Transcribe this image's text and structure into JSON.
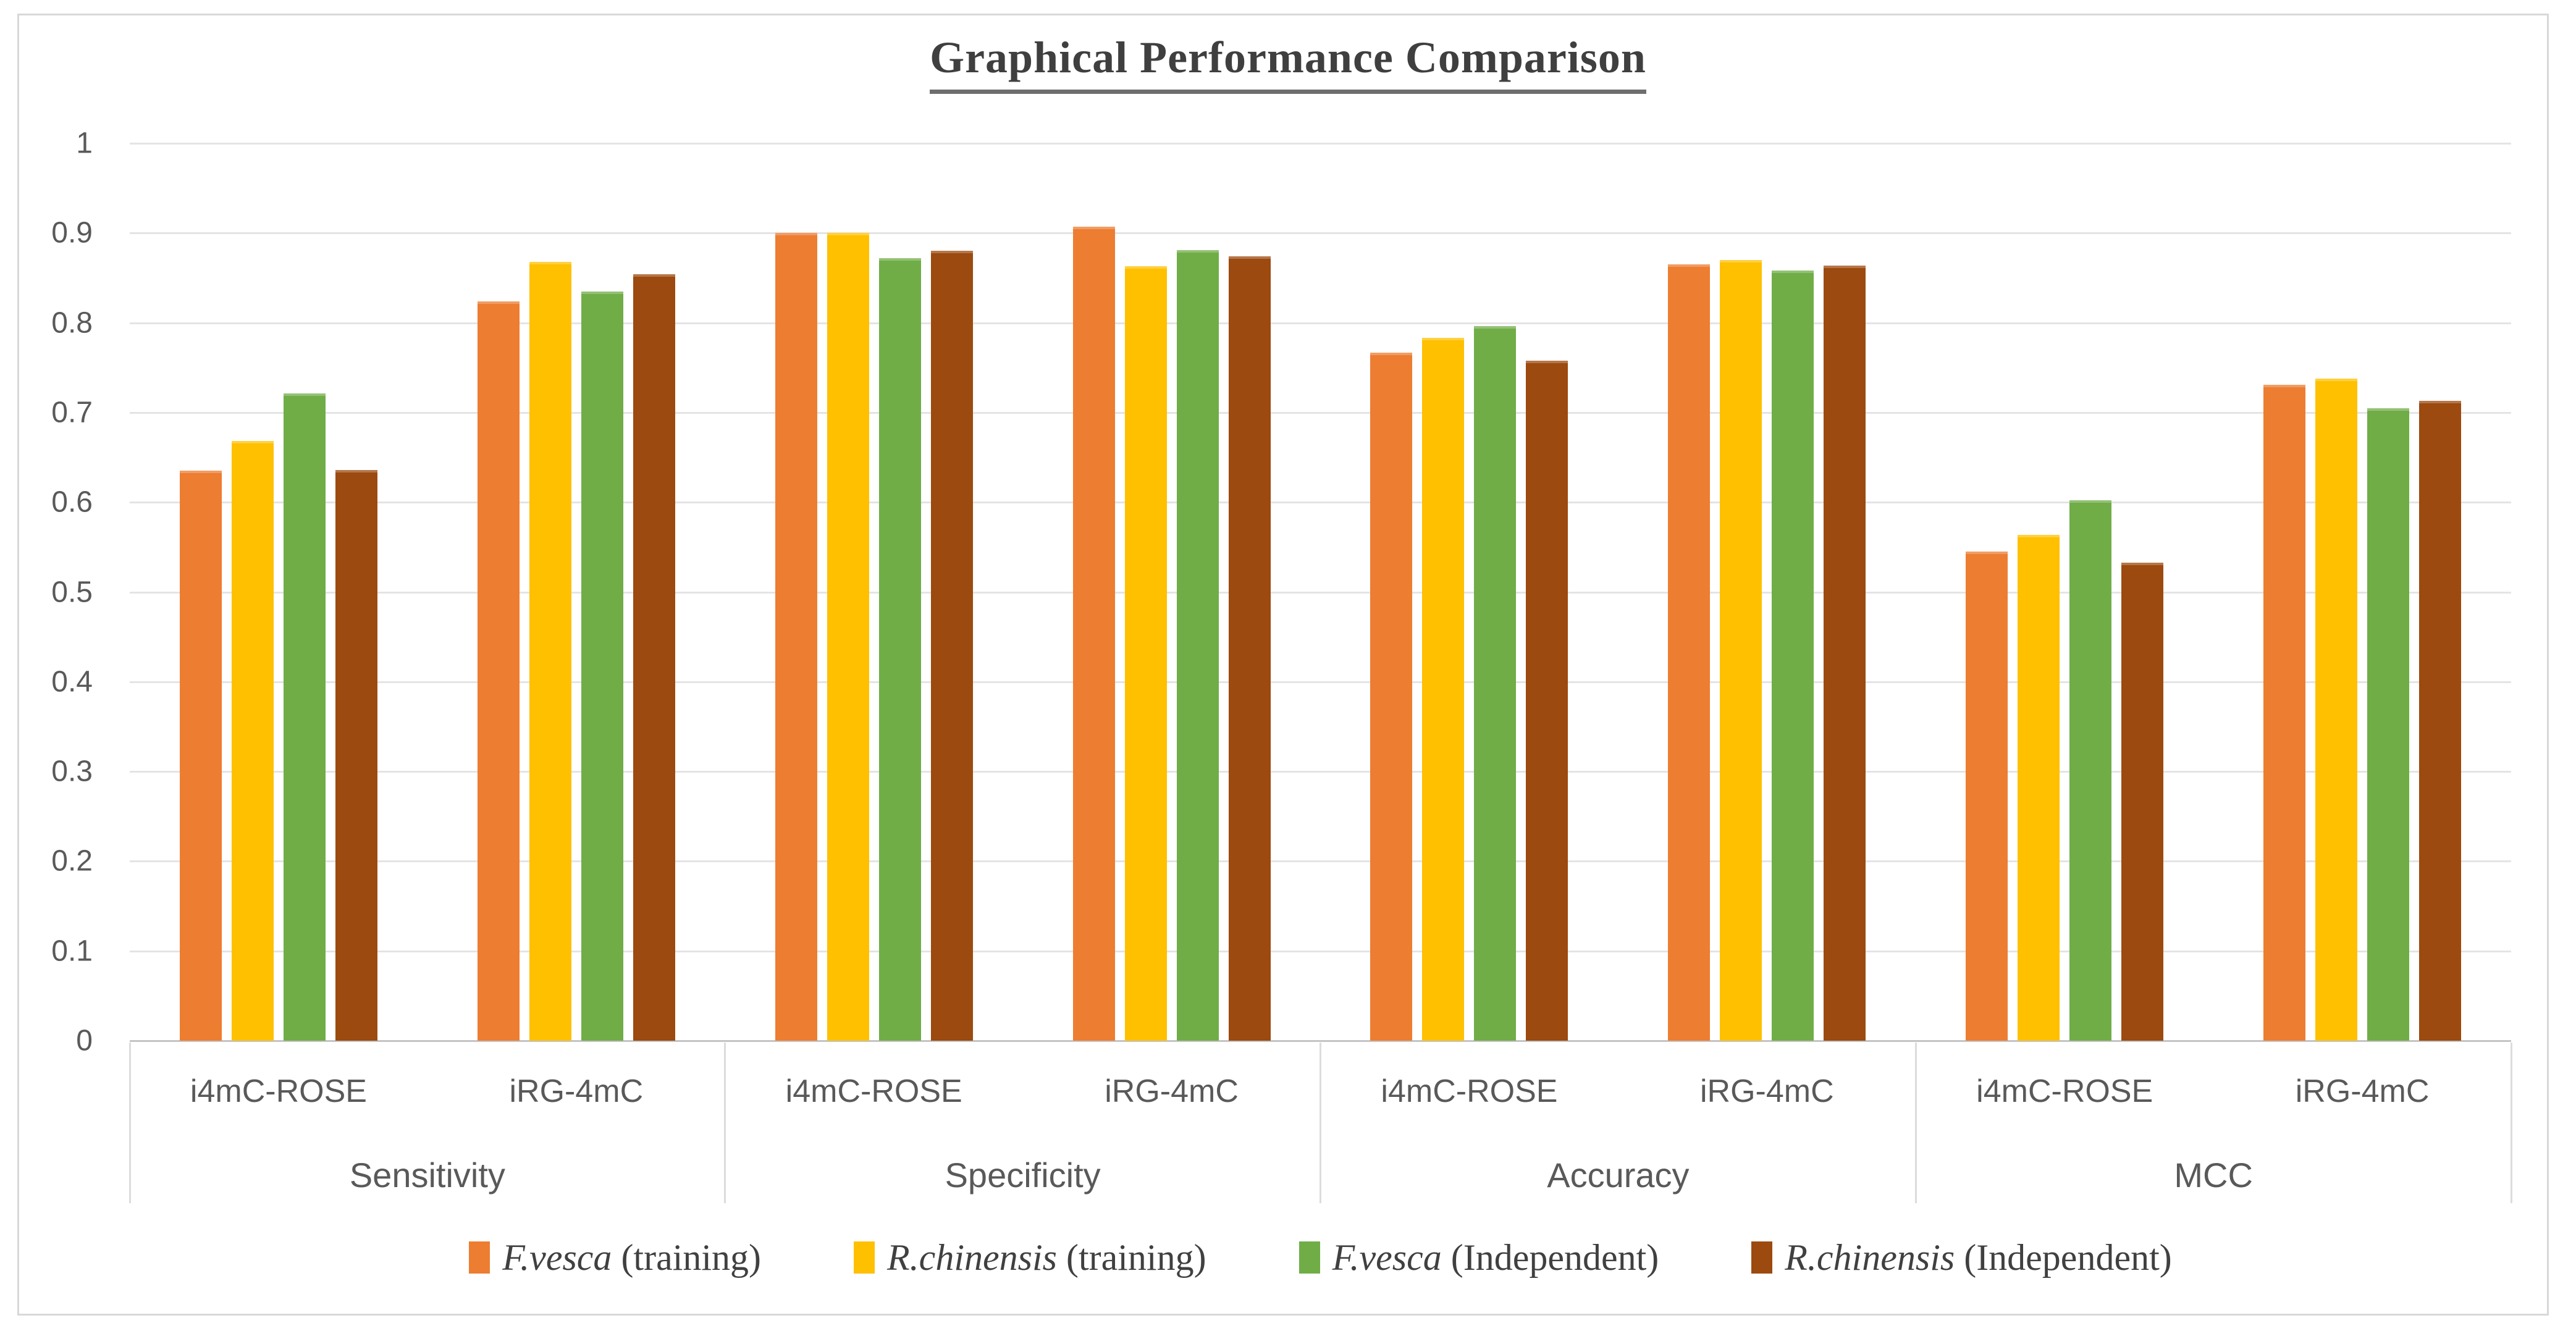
{
  "title": "Graphical Performance Comparison",
  "colors": {
    "background": "#ffffff",
    "figure_border": "#d8d8d8",
    "gridline": "#e4e4e4",
    "axis_line": "#c4c4c4",
    "tick_text": "#595959",
    "title_text": "#3f3f3f",
    "legend_text": "#404040",
    "group_separator": "#dcdcdc",
    "series_orange": "#ED7D31",
    "series_gold": "#FFC000",
    "series_green": "#70AD47",
    "series_brown": "#9C4A0F"
  },
  "chart_data": {
    "type": "bar",
    "title": "Graphical Performance Comparison",
    "xlabel": "",
    "ylabel": "",
    "ylim": [
      0,
      1
    ],
    "ytick_step": 0.1,
    "yticks": [
      "1",
      "0.9",
      "0.8",
      "0.7",
      "0.6",
      "0.5",
      "0.4",
      "0.3",
      "0.2",
      "0.1",
      "0"
    ],
    "grid": "horizontal",
    "legend_position": "bottom",
    "groups": [
      "Sensitivity",
      "Specificity",
      "Accuracy",
      "MCC"
    ],
    "subgroups": [
      "i4mC-ROSE",
      "iRG-4mC"
    ],
    "cluster_order": [
      "Sensitivity / i4mC-ROSE",
      "Sensitivity / iRG-4mC",
      "Specificity / i4mC-ROSE",
      "Specificity / iRG-4mC",
      "Accuracy / i4mC-ROSE",
      "Accuracy / iRG-4mC",
      "MCC / i4mC-ROSE",
      "MCC / iRG-4mC"
    ],
    "series": [
      {
        "name": "F.vesca (training)",
        "species": "F.vesca",
        "label_suffix": " (training)",
        "color": "#ED7D31",
        "values": [
          0.635,
          0.824,
          0.9,
          0.907,
          0.767,
          0.865,
          0.545,
          0.731
        ]
      },
      {
        "name": "R.chinensis (training)",
        "species": "R.chinensis",
        "label_suffix": " (training)",
        "color": "#FFC000",
        "values": [
          0.668,
          0.868,
          0.9,
          0.863,
          0.783,
          0.87,
          0.564,
          0.738
        ]
      },
      {
        "name": "F.vesca (Independent)",
        "species": "F.vesca",
        "label_suffix": " (Independent)",
        "color": "#70AD47",
        "values": [
          0.721,
          0.835,
          0.872,
          0.881,
          0.796,
          0.858,
          0.602,
          0.705
        ]
      },
      {
        "name": "R.chinensis (Independent)",
        "species": "R.chinensis",
        "label_suffix": " (Independent)",
        "color": "#9C4A0F",
        "values": [
          0.636,
          0.854,
          0.88,
          0.874,
          0.758,
          0.864,
          0.533,
          0.713
        ]
      }
    ]
  }
}
